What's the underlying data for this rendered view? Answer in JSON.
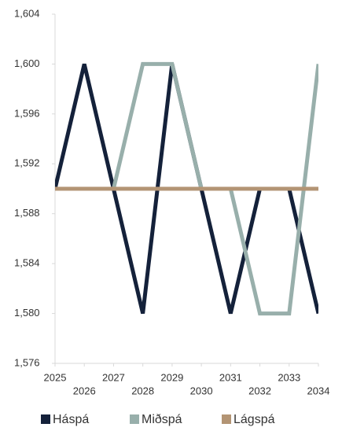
{
  "chart_data": {
    "type": "line",
    "x": [
      2025,
      2026,
      2027,
      2028,
      2029,
      2030,
      2031,
      2032,
      2033,
      2034
    ],
    "series": [
      {
        "name": "Háspá",
        "color": "#14213a",
        "values": [
          1590,
          1600,
          1590,
          1580,
          1600,
          1590,
          1580,
          1590,
          1590,
          1580
        ]
      },
      {
        "name": "Miðspá",
        "color": "#98afab",
        "values": [
          1590,
          1590,
          1590,
          1600,
          1600,
          1590,
          1590,
          1580,
          1580,
          1600
        ]
      },
      {
        "name": "Lágspá",
        "color": "#b39474",
        "values": [
          1590,
          1590,
          1590,
          1590,
          1590,
          1590,
          1590,
          1590,
          1590,
          1590
        ]
      }
    ],
    "xlim": [
      2025,
      2034
    ],
    "xticks": [
      2025,
      2026,
      2027,
      2028,
      2029,
      2030,
      2031,
      2032,
      2033,
      2034
    ],
    "ylim": [
      1576,
      1604
    ],
    "yticks": [
      {
        "value": 1576,
        "label": "1,576"
      },
      {
        "value": 1580,
        "label": "1,580"
      },
      {
        "value": 1584,
        "label": "1,584"
      },
      {
        "value": 1588,
        "label": "1,588"
      },
      {
        "value": 1592,
        "label": "1,592"
      },
      {
        "value": 1596,
        "label": "1,596"
      },
      {
        "value": 1600,
        "label": "1,600"
      },
      {
        "value": 1604,
        "label": "1,604"
      }
    ],
    "legend": "bottom"
  }
}
